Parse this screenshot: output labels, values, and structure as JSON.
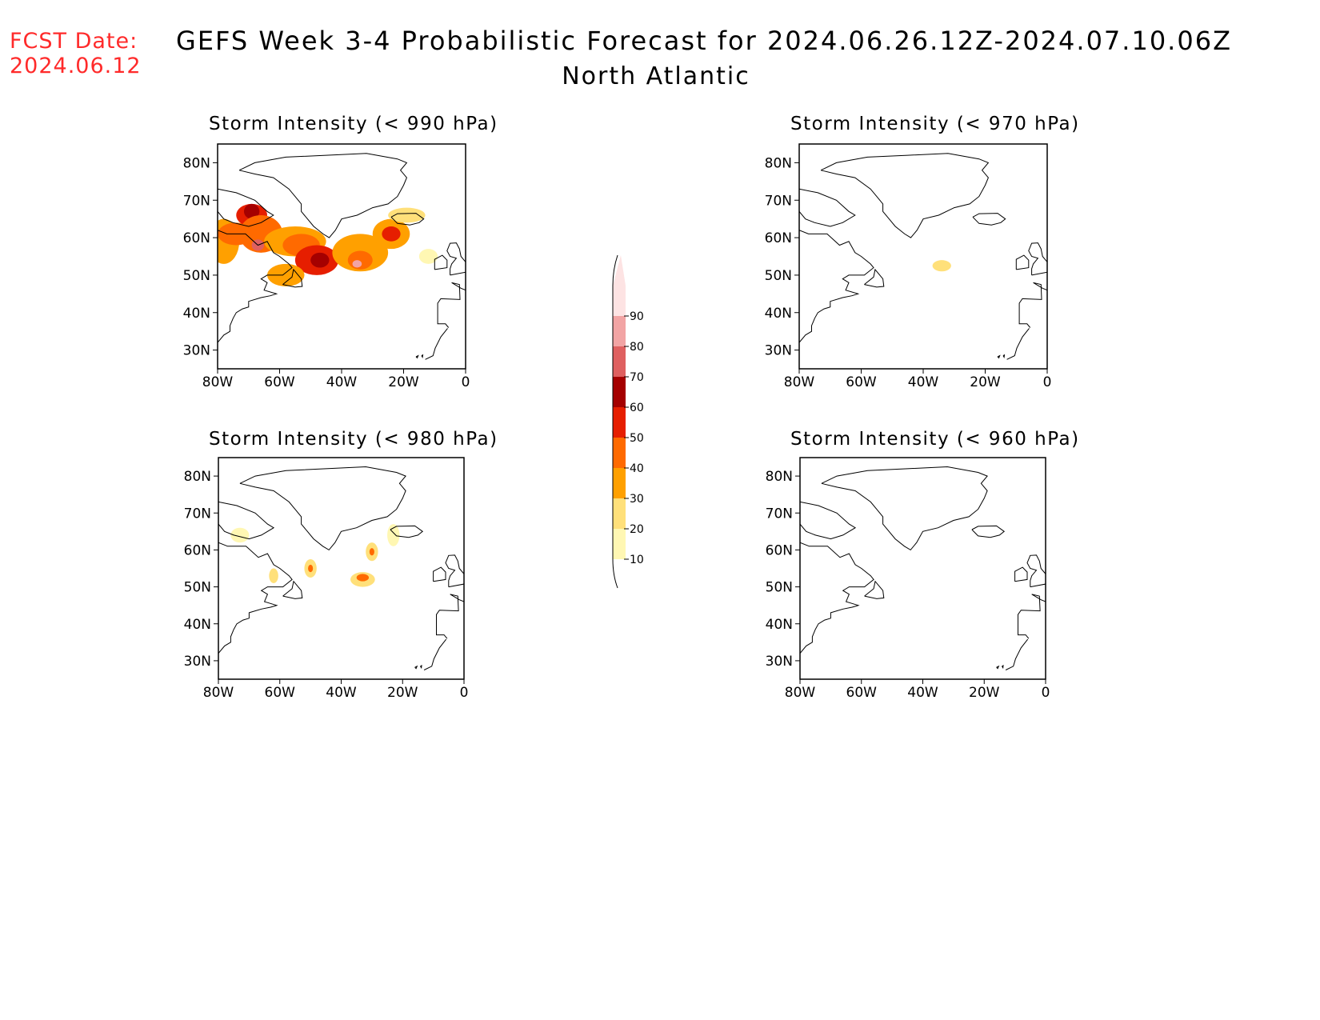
{
  "header": {
    "fcst_label": "FCST Date:",
    "fcst_date": "2024.06.12",
    "title": "GEFS Week 3-4 Probabilistic Forecast for 2024.06.26.12Z-2024.07.10.06Z",
    "subtitle": "North Atlantic"
  },
  "colorbar": {
    "levels": [
      10,
      20,
      30,
      40,
      50,
      60,
      70,
      80,
      90
    ],
    "colors": [
      "#fff7b3",
      "#ffe07a",
      "#ffa000",
      "#ff6a00",
      "#e61e00",
      "#a50000",
      "#df6060",
      "#f2a4a4",
      "#fde3e3"
    ]
  },
  "panels": [
    {
      "id": "p990",
      "title": "Storm Intensity (< 990 hPa)",
      "lat_labels": [
        "80N",
        "70N",
        "60N",
        "50N",
        "40N",
        "30N"
      ],
      "lon_labels": [
        "80W",
        "60W",
        "40W",
        "20W",
        "0"
      ],
      "lat_values": [
        80,
        70,
        60,
        50,
        40,
        30
      ],
      "lon_values": [
        -80,
        -60,
        -40,
        -20,
        0
      ],
      "blobs": [
        {
          "lon": -78,
          "lat": 59,
          "rx": 5,
          "ry": 6,
          "level": 30
        },
        {
          "lon": -74,
          "lat": 61,
          "rx": 6,
          "ry": 3,
          "level": 40
        },
        {
          "lon": -69,
          "lat": 66,
          "rx": 5,
          "ry": 3,
          "level": 50
        },
        {
          "lon": -69,
          "lat": 67,
          "rx": 2.5,
          "ry": 2,
          "level": 60
        },
        {
          "lon": -66,
          "lat": 61,
          "rx": 7,
          "ry": 5,
          "level": 40
        },
        {
          "lon": -67,
          "lat": 58,
          "rx": 2,
          "ry": 1.5,
          "level": 70
        },
        {
          "lon": -55,
          "lat": 59,
          "rx": 10,
          "ry": 4,
          "level": 30
        },
        {
          "lon": -53,
          "lat": 58,
          "rx": 6,
          "ry": 3,
          "level": 40
        },
        {
          "lon": -48,
          "lat": 54,
          "rx": 7,
          "ry": 4,
          "level": 50
        },
        {
          "lon": -47,
          "lat": 54,
          "rx": 3,
          "ry": 2,
          "level": 60
        },
        {
          "lon": -58,
          "lat": 50,
          "rx": 6,
          "ry": 3,
          "level": 30
        },
        {
          "lon": -34,
          "lat": 56,
          "rx": 9,
          "ry": 5,
          "level": 30
        },
        {
          "lon": -34,
          "lat": 54,
          "rx": 4,
          "ry": 2.5,
          "level": 40
        },
        {
          "lon": -35,
          "lat": 53,
          "rx": 1.5,
          "ry": 1,
          "level": 80
        },
        {
          "lon": -24,
          "lat": 61,
          "rx": 6,
          "ry": 4,
          "level": 30
        },
        {
          "lon": -24,
          "lat": 61,
          "rx": 3,
          "ry": 2,
          "level": 50
        },
        {
          "lon": -19,
          "lat": 66,
          "rx": 6,
          "ry": 2,
          "level": 20
        },
        {
          "lon": -12,
          "lat": 55,
          "rx": 3,
          "ry": 2,
          "level": 10
        }
      ]
    },
    {
      "id": "p970",
      "title": "Storm Intensity (< 970 hPa)",
      "lat_labels": [
        "80N",
        "70N",
        "60N",
        "50N",
        "40N",
        "30N"
      ],
      "lon_labels": [
        "80W",
        "60W",
        "40W",
        "20W",
        "0"
      ],
      "lat_values": [
        80,
        70,
        60,
        50,
        40,
        30
      ],
      "lon_values": [
        -80,
        -60,
        -40,
        -20,
        0
      ],
      "blobs": [
        {
          "lon": -34,
          "lat": 52.5,
          "rx": 3,
          "ry": 1.5,
          "level": 20
        }
      ]
    },
    {
      "id": "p980",
      "title": "Storm Intensity (< 980 hPa)",
      "lat_labels": [
        "80N",
        "70N",
        "60N",
        "50N",
        "40N",
        "30N"
      ],
      "lon_labels": [
        "80W",
        "60W",
        "40W",
        "20W",
        "0"
      ],
      "lat_values": [
        80,
        70,
        60,
        50,
        40,
        30
      ],
      "lon_values": [
        -80,
        -60,
        -40,
        -20,
        0
      ],
      "blobs": [
        {
          "lon": -73,
          "lat": 64,
          "rx": 3,
          "ry": 2,
          "level": 10
        },
        {
          "lon": -62,
          "lat": 53,
          "rx": 1.5,
          "ry": 2,
          "level": 20
        },
        {
          "lon": -50,
          "lat": 55,
          "rx": 2,
          "ry": 2.5,
          "level": 20
        },
        {
          "lon": -50,
          "lat": 55,
          "rx": 0.8,
          "ry": 1,
          "level": 40
        },
        {
          "lon": -33,
          "lat": 52,
          "rx": 4,
          "ry": 2,
          "level": 20
        },
        {
          "lon": -33,
          "lat": 52.5,
          "rx": 2,
          "ry": 1,
          "level": 40
        },
        {
          "lon": -30,
          "lat": 59.5,
          "rx": 2,
          "ry": 2.5,
          "level": 20
        },
        {
          "lon": -30,
          "lat": 59.5,
          "rx": 0.8,
          "ry": 1,
          "level": 40
        },
        {
          "lon": -23,
          "lat": 64,
          "rx": 2,
          "ry": 3,
          "level": 10
        }
      ]
    },
    {
      "id": "p960",
      "title": "Storm Intensity (< 960 hPa)",
      "lat_labels": [
        "80N",
        "70N",
        "60N",
        "50N",
        "40N",
        "30N"
      ],
      "lon_labels": [
        "80W",
        "60W",
        "40W",
        "20W",
        "0"
      ],
      "lat_values": [
        80,
        70,
        60,
        50,
        40,
        30
      ],
      "lon_values": [
        -80,
        -60,
        -40,
        -20,
        0
      ],
      "blobs": []
    }
  ]
}
